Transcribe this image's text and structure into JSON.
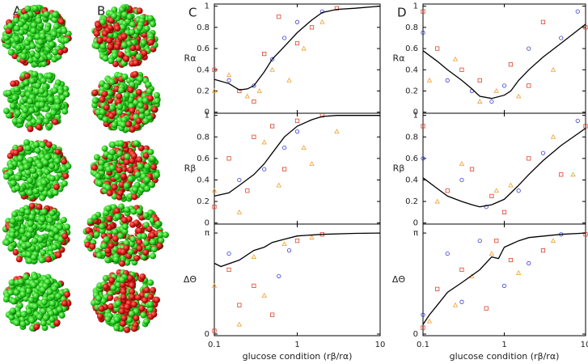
{
  "panel_labels": [
    "A",
    "B"
  ],
  "chart_data": [
    {
      "type": "scatter-line",
      "panel_label": "C",
      "ylabel": "Rα",
      "xscale": "log",
      "xlim": [
        0.1,
        10
      ],
      "xticks": [
        0.1,
        1,
        10
      ],
      "show_xtick_labels": false,
      "ylim": [
        -0.01,
        1.02
      ],
      "yticks": [
        0,
        0.2,
        0.4,
        0.6,
        0.8,
        1
      ],
      "line": {
        "color": "#000000",
        "x": [
          0.1,
          0.15,
          0.2,
          0.25,
          0.3,
          0.4,
          0.5,
          0.7,
          1,
          1.5,
          2,
          3,
          5,
          10
        ],
        "values": [
          0.31,
          0.27,
          0.21,
          0.22,
          0.25,
          0.38,
          0.5,
          0.62,
          0.75,
          0.87,
          0.94,
          0.97,
          0.98,
          1.0
        ]
      },
      "series": [
        {
          "color": "#3a3ad6",
          "marker": "circle",
          "x": [
            0.15,
            0.3,
            0.5,
            0.7,
            1,
            2
          ],
          "values": [
            0.3,
            0.25,
            0.5,
            0.7,
            0.85,
            0.95
          ]
        },
        {
          "color": "#e0402a",
          "marker": "square",
          "x": [
            0.1,
            0.2,
            0.3,
            0.4,
            0.6,
            1,
            1.5,
            3
          ],
          "values": [
            0.4,
            0.2,
            0.1,
            0.55,
            0.9,
            0.65,
            0.8,
            0.98
          ]
        },
        {
          "color": "#f0a030",
          "marker": "triangle",
          "x": [
            0.1,
            0.15,
            0.25,
            0.35,
            0.5,
            0.8,
            1.2,
            2
          ],
          "values": [
            0.2,
            0.35,
            0.15,
            0.2,
            0.4,
            0.3,
            0.6,
            0.85
          ]
        }
      ]
    },
    {
      "type": "scatter-line",
      "ylabel": "Rβ",
      "xscale": "log",
      "xlim": [
        0.1,
        10
      ],
      "xticks": [
        0.1,
        1,
        10
      ],
      "show_xtick_labels": false,
      "ylim": [
        -0.01,
        1.02
      ],
      "yticks": [
        0,
        0.2,
        0.4,
        0.6,
        0.8,
        1
      ],
      "line": {
        "color": "#000000",
        "x": [
          0.1,
          0.15,
          0.2,
          0.3,
          0.4,
          0.5,
          0.7,
          1,
          1.5,
          2,
          3,
          5,
          10
        ],
        "values": [
          0.25,
          0.28,
          0.35,
          0.45,
          0.55,
          0.65,
          0.8,
          0.9,
          0.96,
          0.99,
          1,
          1,
          1
        ]
      },
      "series": [
        {
          "color": "#3a3ad6",
          "marker": "circle",
          "x": [
            0.2,
            0.4,
            0.7,
            1
          ],
          "values": [
            0.4,
            0.5,
            0.7,
            0.85
          ]
        },
        {
          "color": "#e0402a",
          "marker": "square",
          "x": [
            0.1,
            0.15,
            0.25,
            0.3,
            0.5,
            0.7,
            1,
            2
          ],
          "values": [
            0.15,
            0.6,
            0.3,
            0.8,
            0.9,
            0.5,
            0.95,
            1
          ]
        },
        {
          "color": "#f0a030",
          "marker": "triangle",
          "x": [
            0.1,
            0.2,
            0.4,
            0.6,
            1.2,
            1.5,
            3
          ],
          "values": [
            0.3,
            0.1,
            0.75,
            0.35,
            0.7,
            0.55,
            0.85
          ]
        }
      ]
    },
    {
      "type": "scatter-line",
      "ylabel": "ΔΘ",
      "xlabel": "glucose condition (rβ/rα)",
      "xscale": "log",
      "xlim": [
        0.1,
        10
      ],
      "xticks": [
        0.1,
        1,
        10
      ],
      "show_xtick_labels": true,
      "ylim": [
        -0.05,
        3.42
      ],
      "yticks": [
        0,
        {
          "value": 3.14159,
          "label": "π"
        }
      ],
      "line": {
        "color": "#000000",
        "x": [
          0.1,
          0.12,
          0.2,
          0.3,
          0.4,
          0.5,
          0.7,
          1,
          2,
          5,
          10
        ],
        "values": [
          2.2,
          2.1,
          2.3,
          2.6,
          2.7,
          2.85,
          2.95,
          3.05,
          3.1,
          3.13,
          3.14
        ]
      },
      "series": [
        {
          "color": "#3a3ad6",
          "marker": "circle",
          "x": [
            0.15,
            0.6,
            0.8
          ],
          "values": [
            2.5,
            1.8,
            2.6
          ]
        },
        {
          "color": "#e0402a",
          "marker": "square",
          "x": [
            0.1,
            0.15,
            0.2,
            0.3,
            0.5,
            1,
            2
          ],
          "values": [
            0.1,
            2.0,
            0.9,
            1.5,
            0.6,
            2.9,
            3.1
          ]
        },
        {
          "color": "#f0a030",
          "marker": "triangle",
          "x": [
            0.1,
            0.2,
            0.3,
            0.4,
            0.7,
            1.5
          ],
          "values": [
            1.5,
            0.3,
            2.4,
            1.2,
            2.8,
            3.0
          ]
        }
      ]
    },
    {
      "type": "scatter-line",
      "panel_label": "D",
      "ylabel": "Rα",
      "xscale": "log",
      "xlim": [
        0.1,
        10
      ],
      "xticks": [
        0.1,
        1,
        10
      ],
      "show_xtick_labels": false,
      "ylim": [
        -0.01,
        1.02
      ],
      "yticks": [
        0,
        0.2,
        0.4,
        0.6,
        0.8,
        1
      ],
      "line": {
        "color": "#000000",
        "x": [
          0.1,
          0.15,
          0.2,
          0.3,
          0.4,
          0.5,
          0.7,
          1,
          1.2,
          1.5,
          2,
          3,
          5,
          10
        ],
        "values": [
          0.58,
          0.48,
          0.4,
          0.3,
          0.22,
          0.15,
          0.13,
          0.16,
          0.2,
          0.3,
          0.4,
          0.52,
          0.65,
          0.83
        ]
      },
      "series": [
        {
          "color": "#3a3ad6",
          "marker": "circle",
          "x": [
            0.1,
            0.2,
            0.4,
            0.7,
            1,
            2,
            5,
            8
          ],
          "values": [
            0.75,
            0.3,
            0.2,
            0.1,
            0.25,
            0.6,
            0.7,
            0.95
          ]
        },
        {
          "color": "#e0402a",
          "marker": "square",
          "x": [
            0.1,
            0.15,
            0.3,
            0.5,
            1.2,
            2,
            3,
            10
          ],
          "values": [
            0.95,
            0.6,
            0.4,
            0.3,
            0.45,
            0.25,
            0.85,
            0.8
          ]
        },
        {
          "color": "#f0a030",
          "marker": "triangle",
          "x": [
            0.12,
            0.25,
            0.5,
            0.8,
            1.5,
            4
          ],
          "values": [
            0.3,
            0.5,
            0.1,
            0.2,
            0.15,
            0.4
          ]
        }
      ]
    },
    {
      "type": "scatter-line",
      "ylabel": "Rβ",
      "xscale": "log",
      "xlim": [
        0.1,
        10
      ],
      "xticks": [
        0.1,
        1,
        10
      ],
      "show_xtick_labels": false,
      "ylim": [
        -0.01,
        1.02
      ],
      "yticks": [
        0,
        0.2,
        0.4,
        0.6,
        0.8,
        1
      ],
      "line": {
        "color": "#000000",
        "x": [
          0.1,
          0.15,
          0.2,
          0.3,
          0.4,
          0.5,
          0.7,
          1,
          1.5,
          2,
          3,
          5,
          10
        ],
        "values": [
          0.42,
          0.32,
          0.25,
          0.2,
          0.17,
          0.15,
          0.17,
          0.22,
          0.35,
          0.45,
          0.58,
          0.72,
          0.88
        ]
      },
      "series": [
        {
          "color": "#3a3ad6",
          "marker": "circle",
          "x": [
            0.1,
            0.3,
            0.6,
            1.5,
            3,
            8
          ],
          "values": [
            0.6,
            0.4,
            0.15,
            0.3,
            0.65,
            0.95
          ]
        },
        {
          "color": "#e0402a",
          "marker": "square",
          "x": [
            0.1,
            0.2,
            0.4,
            0.7,
            1,
            2,
            5,
            10
          ],
          "values": [
            0.9,
            0.3,
            0.5,
            0.25,
            0.1,
            0.6,
            0.45,
            0.9
          ]
        },
        {
          "color": "#f0a030",
          "marker": "triangle",
          "x": [
            0.15,
            0.3,
            0.8,
            1.2,
            4,
            7
          ],
          "values": [
            0.2,
            0.55,
            0.3,
            0.35,
            0.8,
            0.45
          ]
        }
      ]
    },
    {
      "type": "scatter-line",
      "ylabel": "ΔΘ",
      "xlabel": "glucose condition (rβ/rα)",
      "xscale": "log",
      "xlim": [
        0.1,
        10
      ],
      "xticks": [
        0.1,
        1,
        10
      ],
      "show_xtick_labels": true,
      "ylim": [
        -0.05,
        3.42
      ],
      "yticks": [
        0,
        {
          "value": 3.14159,
          "label": "π"
        }
      ],
      "line": {
        "color": "#000000",
        "x": [
          0.1,
          0.12,
          0.15,
          0.2,
          0.3,
          0.5,
          0.7,
          0.85,
          1,
          1.5,
          2,
          5,
          10
        ],
        "values": [
          0.3,
          0.6,
          0.9,
          1.3,
          1.6,
          2.0,
          2.4,
          2.35,
          2.7,
          2.9,
          3.0,
          3.1,
          3.14
        ]
      },
      "series": [
        {
          "color": "#3a3ad6",
          "marker": "circle",
          "x": [
            0.1,
            0.2,
            0.3,
            0.5,
            1,
            2,
            5
          ],
          "values": [
            0.6,
            2.5,
            1.0,
            2.9,
            1.5,
            2.2,
            3.1
          ]
        },
        {
          "color": "#e0402a",
          "marker": "square",
          "x": [
            0.1,
            0.15,
            0.3,
            0.6,
            0.8,
            1.2,
            3,
            10
          ],
          "values": [
            0.2,
            1.4,
            2.0,
            0.8,
            2.9,
            2.3,
            2.6,
            3.1
          ]
        },
        {
          "color": "#f0a030",
          "marker": "triangle",
          "x": [
            0.12,
            0.25,
            0.4,
            0.7,
            1.5,
            4
          ],
          "values": [
            0.4,
            0.9,
            1.8,
            2.5,
            1.9,
            2.9
          ]
        }
      ]
    }
  ]
}
